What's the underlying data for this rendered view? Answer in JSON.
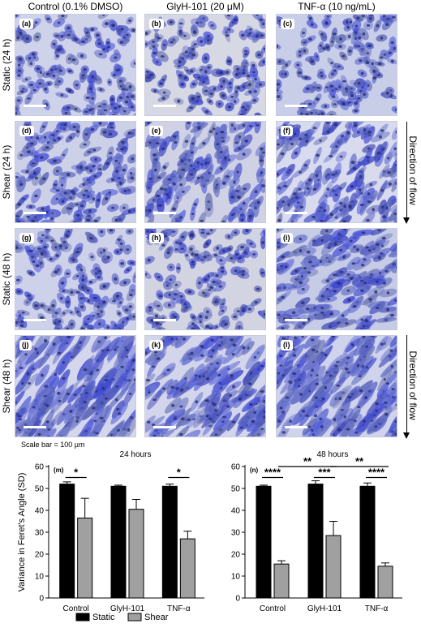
{
  "column_titles": [
    "Control (0.1% DMSO)",
    "GlyH-101 (20 μM)",
    "TNF-α (10 ng/mL)"
  ],
  "row_labels": [
    "Static (24 h)",
    "Shear (24 h)",
    "Static (48 h)",
    "Shear (48 h)"
  ],
  "panel_letters": [
    "(a)",
    "(b)",
    "(c)",
    "(d)",
    "(e)",
    "(f)",
    "(g)",
    "(h)",
    "(i)",
    "(j)",
    "(k)",
    "(l)"
  ],
  "flow_label": "Direction of flow",
  "scale_bar_text": "Scale bar = 100 μm",
  "colors": {
    "stain": "#4a55c0",
    "background": "#c9cde6",
    "static_bar": "#000000",
    "shear_bar": "#a0a0a0"
  },
  "chart_data": [
    {
      "type": "bar",
      "panel": "(m)",
      "title": "24 hours",
      "ylabel": "Variance in Feret's Angle (SD)",
      "xlabel": "",
      "categories": [
        "Control",
        "GlyH-101",
        "TNF-α"
      ],
      "ylim": [
        0,
        60
      ],
      "yticks": [
        0,
        10,
        20,
        30,
        40,
        50,
        60
      ],
      "series": [
        {
          "name": "Static",
          "values": [
            52,
            51,
            51
          ],
          "errors": [
            1,
            0.5,
            1
          ]
        },
        {
          "name": "Shear",
          "values": [
            36.5,
            40.5,
            27
          ],
          "errors": [
            9,
            4.5,
            3.5
          ]
        }
      ],
      "significance": [
        {
          "label": "*",
          "category": "Control",
          "y": 55
        },
        {
          "label": "*",
          "category": "TNF-α",
          "y": 55
        }
      ]
    },
    {
      "type": "bar",
      "panel": "(n)",
      "title": "48 hours",
      "ylabel": "",
      "xlabel": "",
      "categories": [
        "Control",
        "GlyH-101",
        "TNF-α"
      ],
      "ylim": [
        0,
        60
      ],
      "yticks": [
        0,
        10,
        20,
        30,
        40,
        50,
        60
      ],
      "series": [
        {
          "name": "Static",
          "values": [
            51,
            52,
            51
          ],
          "errors": [
            0.5,
            1.5,
            1.5
          ]
        },
        {
          "name": "Shear",
          "values": [
            15.5,
            28.5,
            14.5
          ],
          "errors": [
            1.5,
            6.5,
            1.5
          ]
        }
      ],
      "significance": [
        {
          "label": "****",
          "category": "Control",
          "y": 55
        },
        {
          "label": "***",
          "category": "GlyH-101",
          "y": 55
        },
        {
          "label": "****",
          "category": "TNF-α",
          "y": 55
        },
        {
          "label": "**",
          "between": [
            "Control",
            "GlyH-101"
          ],
          "y": 60
        },
        {
          "label": "**",
          "between": [
            "GlyH-101",
            "TNF-α"
          ],
          "y": 60
        }
      ]
    }
  ],
  "legend": {
    "static": "Static",
    "shear": "Shear"
  }
}
